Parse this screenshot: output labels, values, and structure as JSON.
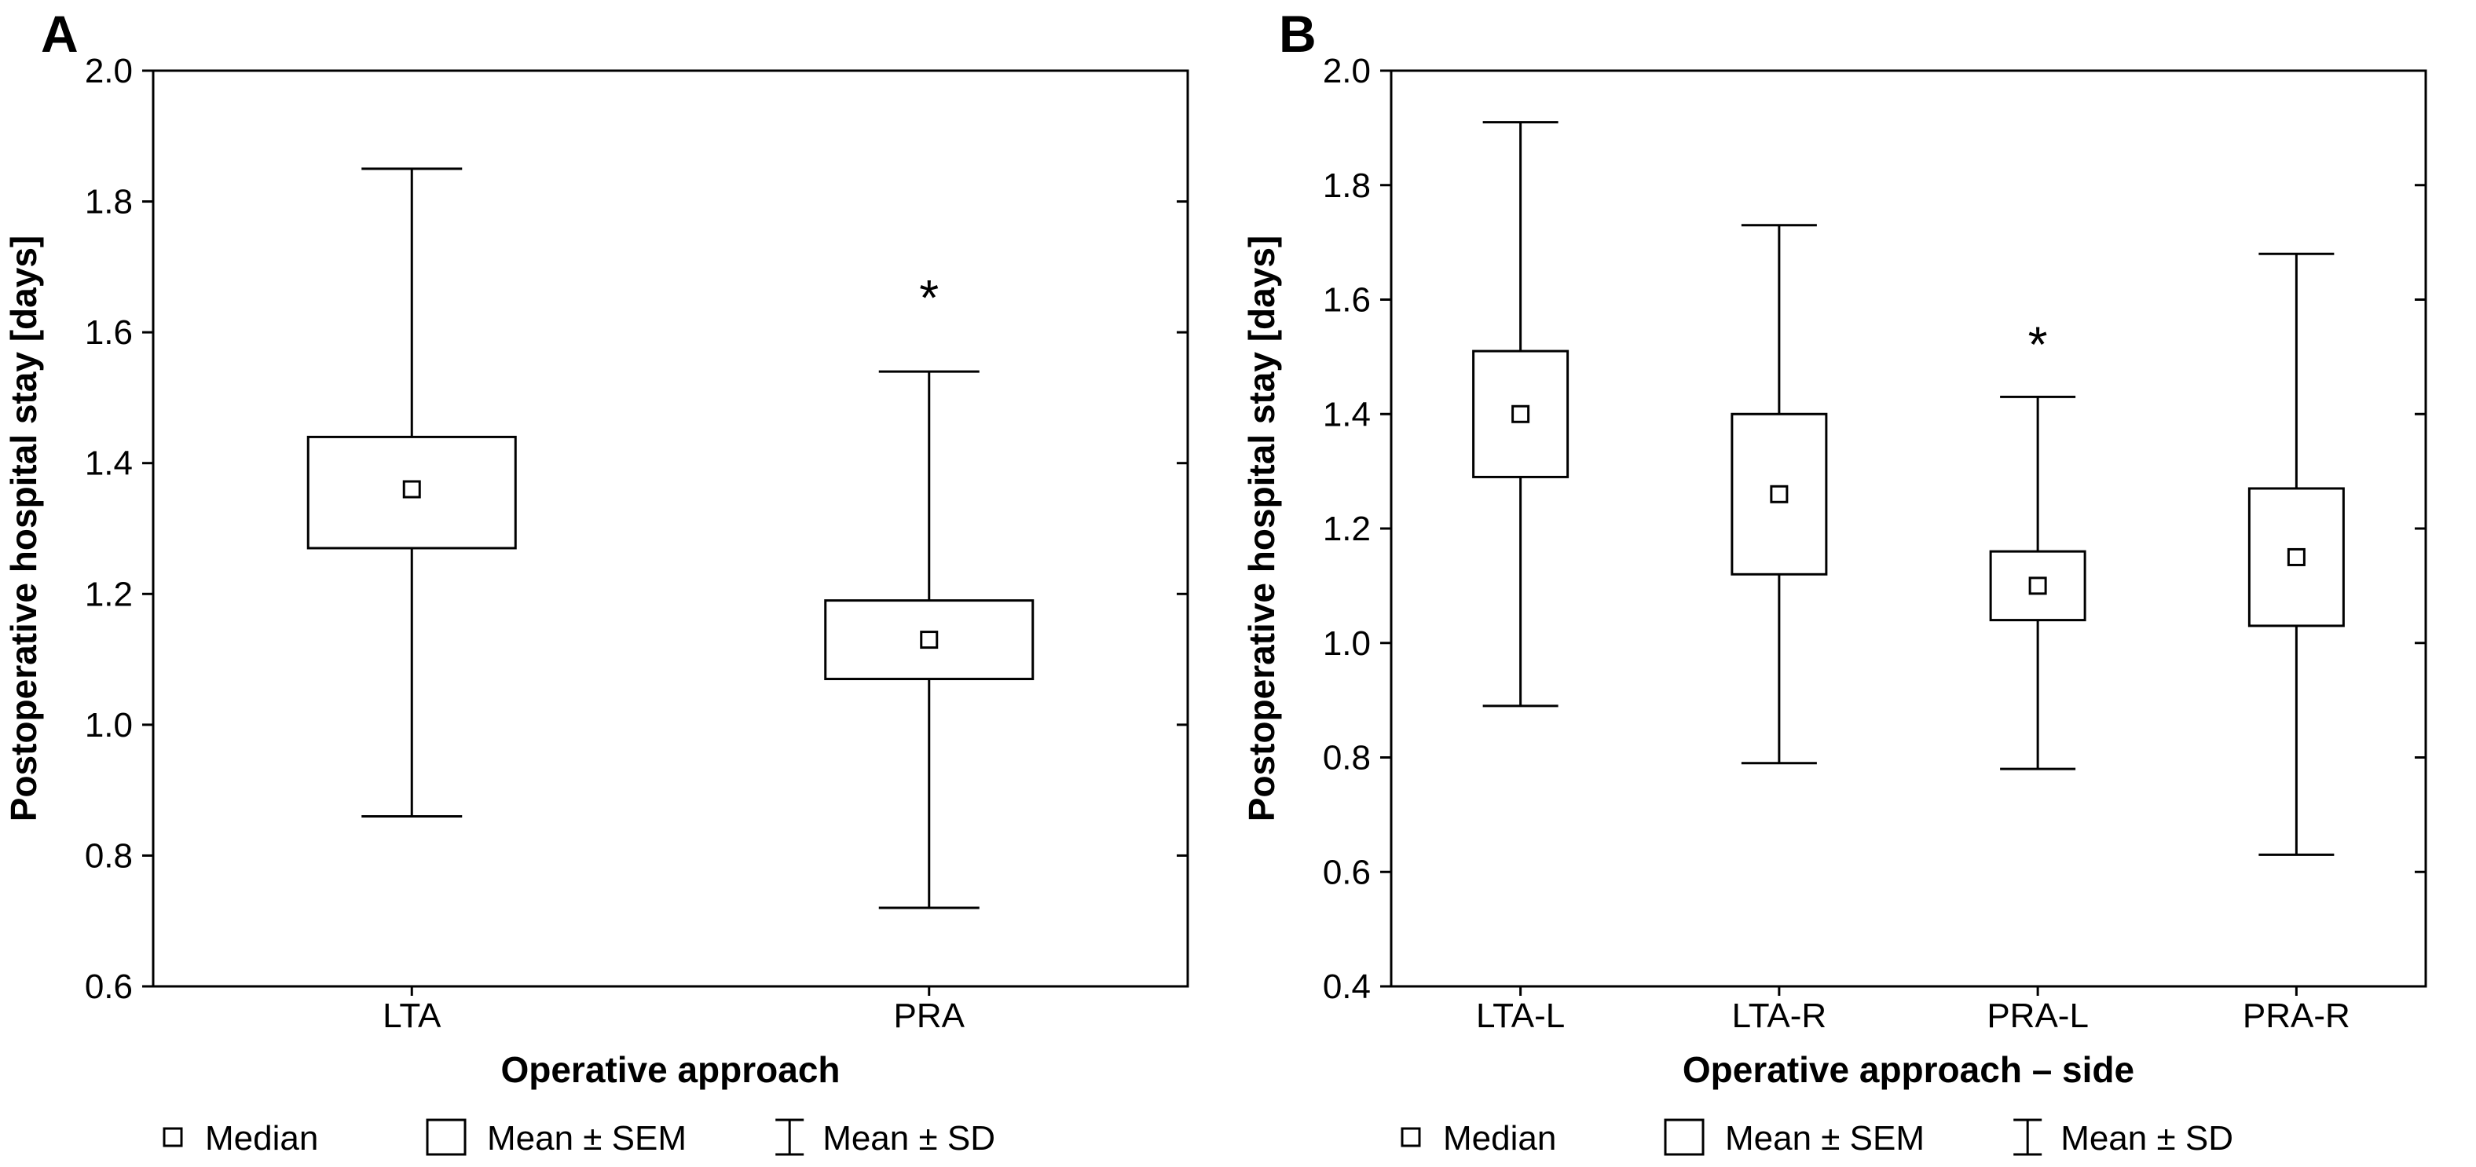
{
  "page": {
    "background_color": "#ffffff",
    "ink_color": "#000000"
  },
  "chart_data": [
    {
      "type": "box",
      "panel_label": "A",
      "title": "",
      "xlabel": "Operative approach",
      "ylabel": "Postoperative hospital stay [days]",
      "ylim": [
        0.6,
        2.0
      ],
      "ytick_interval": 0.2,
      "ytick_labels": [
        "0.6",
        "0.8",
        "1.0",
        "1.2",
        "1.4",
        "1.6",
        "1.8",
        "2.0"
      ],
      "grid": false,
      "legend_position": "bottom",
      "categories": [
        "LTA",
        "PRA"
      ],
      "series": [
        {
          "name": "LTA",
          "median": 1.36,
          "mean_sem": [
            1.27,
            1.44
          ],
          "mean_sd": [
            0.86,
            1.85
          ],
          "annotation": "",
          "annotation_y": null
        },
        {
          "name": "PRA",
          "median": 1.13,
          "mean_sem": [
            1.07,
            1.19
          ],
          "mean_sd": [
            0.72,
            1.54
          ],
          "annotation": "*",
          "annotation_y": 1.66
        }
      ],
      "legend": [
        {
          "symbol": "median-square",
          "label": "Median"
        },
        {
          "symbol": "sem-box",
          "label": "Mean ± SEM"
        },
        {
          "symbol": "sd-whisker",
          "label": "Mean ± SD"
        }
      ]
    },
    {
      "type": "box",
      "panel_label": "B",
      "title": "",
      "xlabel": "Operative approach – side",
      "ylabel": "Postoperative hospital stay [days]",
      "ylim": [
        0.4,
        2.0
      ],
      "ytick_interval": 0.2,
      "ytick_labels": [
        "0.4",
        "0.6",
        "0.8",
        "1.0",
        "1.2",
        "1.4",
        "1.6",
        "1.8",
        "2.0"
      ],
      "grid": false,
      "legend_position": "bottom",
      "categories": [
        "LTA-L",
        "LTA-R",
        "PRA-L",
        "PRA-R"
      ],
      "series": [
        {
          "name": "LTA-L",
          "median": 1.4,
          "mean_sem": [
            1.29,
            1.51
          ],
          "mean_sd": [
            0.89,
            1.91
          ],
          "annotation": "",
          "annotation_y": null
        },
        {
          "name": "LTA-R",
          "median": 1.26,
          "mean_sem": [
            1.12,
            1.4
          ],
          "mean_sd": [
            0.79,
            1.73
          ],
          "annotation": "",
          "annotation_y": null
        },
        {
          "name": "PRA-L",
          "median": 1.1,
          "mean_sem": [
            1.04,
            1.16
          ],
          "mean_sd": [
            0.78,
            1.43
          ],
          "annotation": "*",
          "annotation_y": 1.53
        },
        {
          "name": "PRA-R",
          "median": 1.15,
          "mean_sem": [
            1.03,
            1.27
          ],
          "mean_sd": [
            0.63,
            1.68
          ],
          "annotation": "",
          "annotation_y": null
        }
      ],
      "legend": [
        {
          "symbol": "median-square",
          "label": "Median"
        },
        {
          "symbol": "sem-box",
          "label": "Mean ± SEM"
        },
        {
          "symbol": "sd-whisker",
          "label": "Mean ± SD"
        }
      ]
    }
  ]
}
